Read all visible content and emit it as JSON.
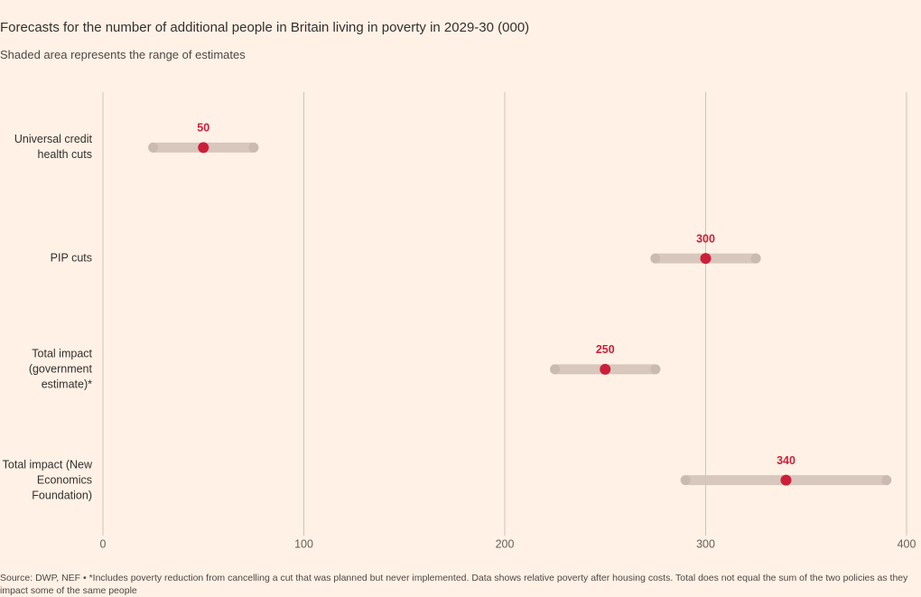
{
  "chart_data": {
    "type": "range-dot",
    "title": "Forecasts for the number of additional people in Britain living in poverty in 2029-30 (000)",
    "subtitle": "Shaded area represents the range of estimates",
    "categories": [
      "Universal credit health cuts",
      "PIP cuts",
      "Total impact (government estimate)*",
      "Total impact (New Economics Foundation)"
    ],
    "values": [
      50,
      300,
      250,
      340
    ],
    "low": [
      25,
      275,
      225,
      290
    ],
    "high": [
      75,
      325,
      275,
      390
    ],
    "color": "#cc1f3a",
    "range_color": "#d5c5bb",
    "xlim": [
      0,
      400
    ],
    "xticks": [
      0,
      100,
      200,
      300,
      400
    ],
    "grid": true,
    "source": "Source: DWP, NEF • *Includes poverty reduction from cancelling a cut that was planned but never implemented. Data shows relative poverty after housing costs. Total does not equal the sum of the two policies as they impact some of the same people"
  }
}
